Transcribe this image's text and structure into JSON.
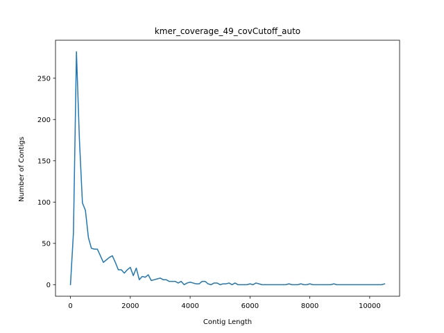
{
  "chart_data": {
    "type": "line",
    "title": "kmer_coverage_49_covCutoff_auto",
    "xlabel": "Contig Length",
    "ylabel": "Number of Contigs",
    "xlim": [
      -500,
      11000
    ],
    "ylim": [
      -14,
      296
    ],
    "xticks": [
      0,
      2000,
      4000,
      6000,
      8000,
      10000
    ],
    "yticks": [
      0,
      50,
      100,
      150,
      200,
      250
    ],
    "grid": false,
    "legend": "none",
    "series": [
      {
        "color": "#1f77b4",
        "x": [
          0,
          100,
          200,
          300,
          400,
          500,
          600,
          700,
          800,
          900,
          1000,
          1100,
          1200,
          1300,
          1400,
          1500,
          1600,
          1700,
          1800,
          1900,
          2000,
          2100,
          2200,
          2300,
          2400,
          2500,
          2600,
          2700,
          2800,
          2900,
          3000,
          3100,
          3200,
          3300,
          3400,
          3500,
          3600,
          3700,
          3800,
          3900,
          4000,
          4100,
          4200,
          4300,
          4400,
          4500,
          4600,
          4700,
          4800,
          4900,
          5000,
          5100,
          5200,
          5300,
          5400,
          5500,
          5600,
          5700,
          5800,
          5900,
          6000,
          6100,
          6200,
          6300,
          6400,
          6500,
          6600,
          6700,
          6800,
          6900,
          7000,
          7100,
          7200,
          7300,
          7400,
          7500,
          7600,
          7700,
          7800,
          7900,
          8000,
          8100,
          8200,
          8300,
          8400,
          8500,
          8600,
          8700,
          8800,
          8900,
          9000,
          9100,
          9200,
          9300,
          9400,
          9500,
          9600,
          9700,
          9800,
          9900,
          10000,
          10100,
          10200,
          10300,
          10400,
          10500
        ],
        "values": [
          0,
          63,
          282,
          175,
          99,
          90,
          57,
          44,
          43,
          43,
          35,
          27,
          30,
          33,
          35,
          27,
          18,
          18,
          14,
          18,
          21,
          11,
          20,
          6,
          10,
          9,
          12,
          5,
          6,
          7,
          8,
          6,
          6,
          4,
          4,
          4,
          2,
          4,
          0,
          2,
          3,
          2,
          1,
          1,
          4,
          4,
          1,
          0,
          2,
          2,
          0,
          1,
          1,
          2,
          0,
          2,
          0,
          0,
          0,
          0,
          1,
          0,
          2,
          1,
          0,
          0,
          0,
          0,
          0,
          0,
          0,
          0,
          0,
          1,
          0,
          0,
          0,
          1,
          0,
          0,
          1,
          0,
          0,
          0,
          0,
          0,
          0,
          0,
          1,
          0,
          0,
          0,
          0,
          0,
          0,
          0,
          0,
          0,
          0,
          0,
          0,
          0,
          0,
          0,
          0,
          1
        ]
      }
    ]
  }
}
